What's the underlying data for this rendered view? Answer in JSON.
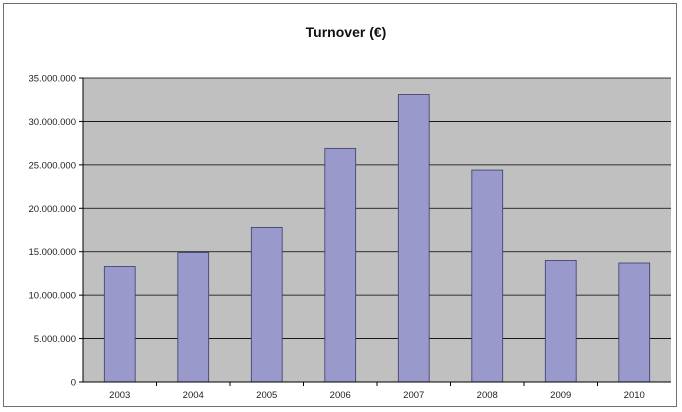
{
  "chart_data": {
    "type": "bar",
    "title": "Turnover (€)",
    "xlabel": "",
    "ylabel": "",
    "categories": [
      "2003",
      "2004",
      "2005",
      "2006",
      "2007",
      "2008",
      "2009",
      "2010"
    ],
    "values": [
      13300000,
      14900000,
      17800000,
      26900000,
      33100000,
      24400000,
      14000000,
      13700000
    ],
    "ylim": [
      0,
      35000000
    ],
    "y_ticks": [
      0,
      5000000,
      10000000,
      15000000,
      20000000,
      25000000,
      30000000,
      35000000
    ],
    "y_tick_labels": [
      "0",
      "5.000.000",
      "10.000.000",
      "15.000.000",
      "20.000.000",
      "25.000.000",
      "30.000.000",
      "35.000.000"
    ],
    "grid": true,
    "legend": "none",
    "colors": {
      "bar_fill": "#9999cc",
      "bar_stroke": "#3b3b6b",
      "plot_background": "#c0c0c0",
      "gridline": "#000000"
    }
  }
}
